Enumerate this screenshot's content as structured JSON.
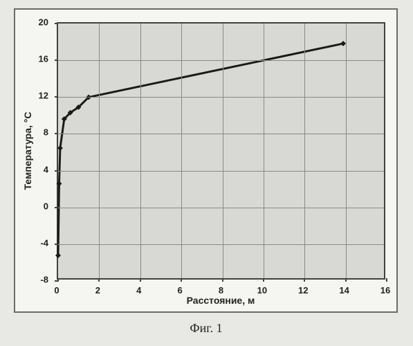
{
  "chart": {
    "type": "line",
    "xlabel": "Расстояние, м",
    "ylabel": "Температура, °С",
    "xlim": [
      0,
      16
    ],
    "ylim": [
      -8,
      20
    ],
    "xtick_step": 2,
    "ytick_step": 4,
    "xticks": [
      0,
      2,
      4,
      6,
      8,
      10,
      12,
      14,
      16
    ],
    "yticks": [
      -8,
      -4,
      0,
      4,
      8,
      12,
      16,
      20
    ],
    "background_color": "#d8d8d4",
    "grid_color": "#888884",
    "border_color": "#404040",
    "line_color": "#1a1a1a",
    "line_width": 3,
    "marker_color": "#1a1a1a",
    "marker_size": 8,
    "marker_style": "diamond",
    "label_fontsize": 13,
    "axis_title_fontsize": 14,
    "series": {
      "x": [
        0,
        0.05,
        0.1,
        0.3,
        0.6,
        1.0,
        1.5,
        14.0
      ],
      "y": [
        -5.5,
        2.4,
        6.3,
        9.5,
        10.2,
        10.8,
        11.9,
        17.8
      ]
    }
  },
  "caption": "Фиг. 1",
  "outer_bg": "#e8e8e4",
  "panel_bg": "#f5f5f1"
}
